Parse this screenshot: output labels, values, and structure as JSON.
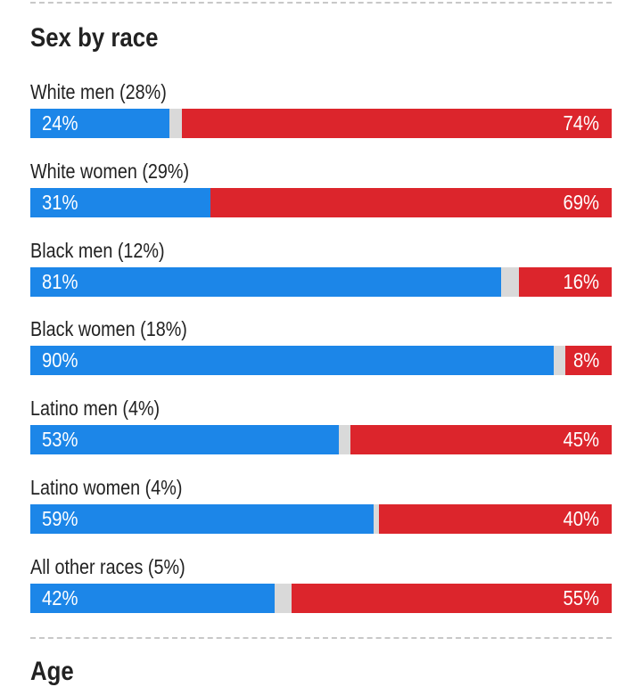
{
  "section_title": "Sex by race",
  "next_section_title": "Age",
  "colors": {
    "dem": "#1c86e8",
    "rep": "#dc252c",
    "other": "#d9d9d9"
  },
  "chart_data": {
    "type": "bar",
    "title": "Sex by race",
    "categories": [
      "White men (28%)",
      "White women (29%)",
      "Black men (12%)",
      "Black women (18%)",
      "Latino men (4%)",
      "Latino women (4%)",
      "All other races (5%)"
    ],
    "series": [
      {
        "color": "#1c86e8",
        "values": [
          24,
          31,
          81,
          90,
          53,
          59,
          42
        ]
      },
      {
        "color": "#dc252c",
        "values": [
          74,
          69,
          16,
          8,
          45,
          40,
          55
        ]
      }
    ],
    "value_labels": {
      "blue": [
        "24%",
        "31%",
        "81%",
        "90%",
        "53%",
        "59%",
        "42%"
      ],
      "red": [
        "74%",
        "69%",
        "16%",
        "8%",
        "45%",
        "40%",
        "55%"
      ]
    },
    "ylim": [
      0,
      100
    ],
    "orientation": "horizontal-stacked",
    "grid": false
  }
}
